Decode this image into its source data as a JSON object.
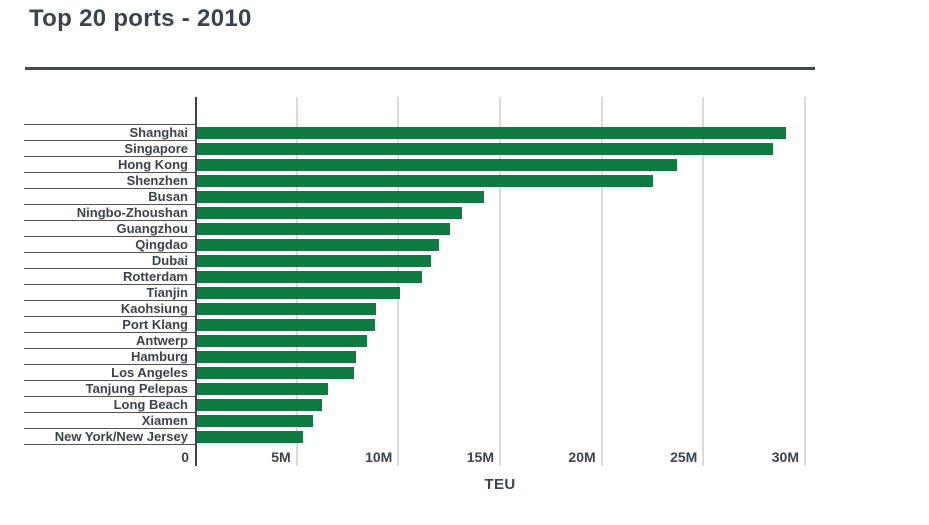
{
  "title": "Top 20 ports - 2010",
  "x_axis_title": "TEU",
  "colors": {
    "bar_green": "#0f7a43",
    "text_dark": "#3c434d",
    "gridline": "#dadada",
    "row_line": "#4d5358",
    "divider": "#434a54",
    "axis_line": "#3e444c"
  },
  "chart_data": {
    "type": "bar",
    "orientation": "horizontal",
    "title": "Top 20 ports - 2010",
    "xlabel": "TEU",
    "unit": "TEU (millions)",
    "categories": [
      "Shanghai",
      "Singapore",
      "Hong Kong",
      "Shenzhen",
      "Busan",
      "Ningbo-Zhoushan",
      "Guangzhou",
      "Qingdao",
      "Dubai",
      "Rotterdam",
      "Tianjin",
      "Kaohsiung",
      "Port Klang",
      "Antwerp",
      "Hamburg",
      "Los Angeles",
      "Tanjung Pelepas",
      "Long Beach",
      "Xiamen",
      "New York/New Jersey"
    ],
    "values": [
      29.07,
      28.43,
      23.7,
      22.51,
      14.19,
      13.14,
      12.55,
      12.01,
      11.6,
      11.15,
      10.08,
      8.89,
      8.87,
      8.47,
      7.9,
      7.83,
      6.53,
      6.26,
      5.82,
      5.29
    ],
    "x_ticks": [
      "0",
      "5M",
      "10M",
      "15M",
      "20M",
      "25M",
      "30M"
    ],
    "x_tick_values": [
      0,
      5,
      10,
      15,
      20,
      25,
      30
    ],
    "xlim": [
      0,
      30
    ],
    "grid": "vertical-only",
    "legend": "none"
  }
}
